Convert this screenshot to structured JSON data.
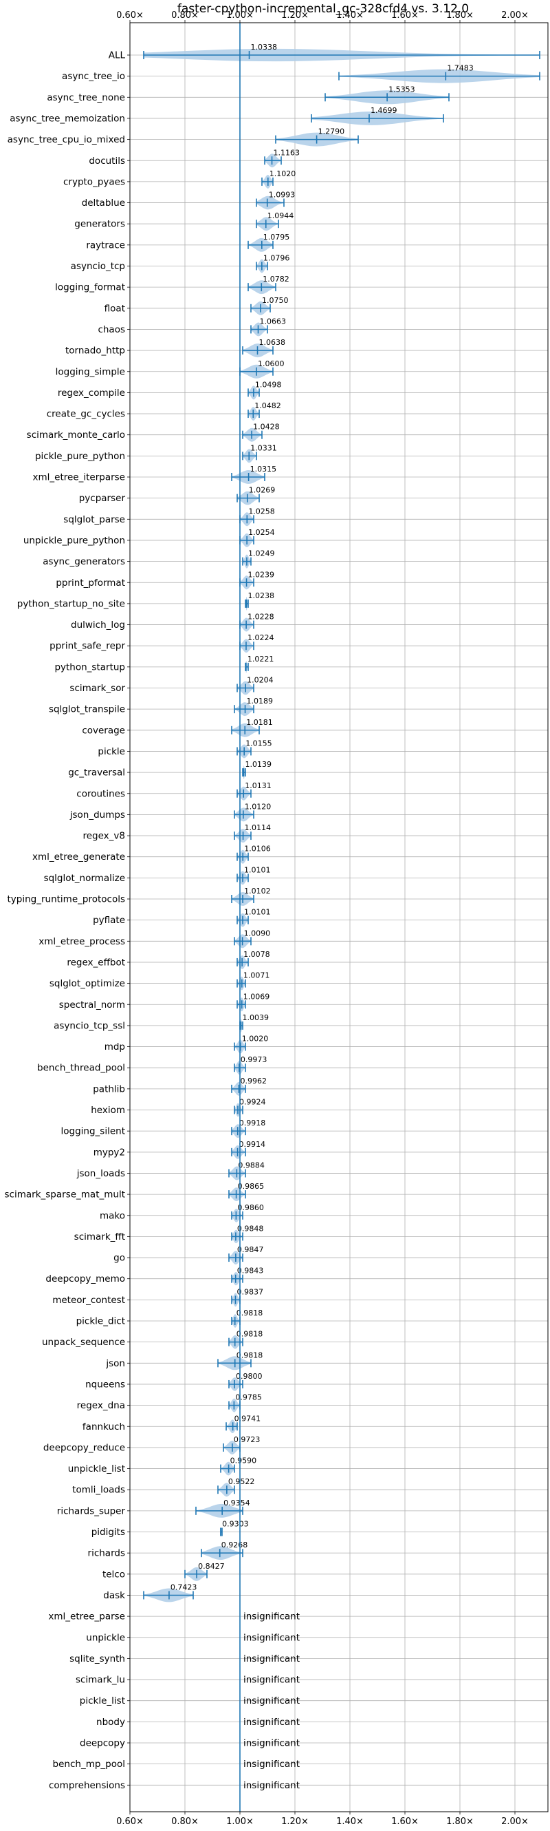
{
  "chart_data": {
    "type": "violin",
    "title": "faster-cpython-incremental_gc-328cfd4 vs. 3.12.0",
    "xlabel": "",
    "ylabel": "",
    "xlim": [
      0.6,
      2.12
    ],
    "xticks": [
      0.6,
      0.8,
      1.0,
      1.2,
      1.4,
      1.6,
      1.8,
      2.0
    ],
    "xtick_labels": [
      "0.60×",
      "0.80×",
      "1.00×",
      "1.20×",
      "1.40×",
      "1.60×",
      "1.80×",
      "2.00×"
    ],
    "baseline": 1.0,
    "grid": true,
    "accent_color": "#1f77b4",
    "violin_color": "#aecde8",
    "insignificant_label": "insignificant",
    "benchmarks": [
      {
        "name": "ALL",
        "value": 1.0338,
        "label": "1.0338",
        "min": 0.65,
        "max": 2.09
      },
      {
        "name": "async_tree_io",
        "value": 1.7483,
        "label": "1.7483",
        "min": 1.36,
        "max": 2.09
      },
      {
        "name": "async_tree_none",
        "value": 1.5353,
        "label": "1.5353",
        "min": 1.31,
        "max": 1.76
      },
      {
        "name": "async_tree_memoization",
        "value": 1.4699,
        "label": "1.4699",
        "min": 1.26,
        "max": 1.74
      },
      {
        "name": "async_tree_cpu_io_mixed",
        "value": 1.279,
        "label": "1.2790",
        "min": 1.13,
        "max": 1.43
      },
      {
        "name": "docutils",
        "value": 1.1163,
        "label": "1.1163",
        "min": 1.09,
        "max": 1.15
      },
      {
        "name": "crypto_pyaes",
        "value": 1.102,
        "label": "1.1020",
        "min": 1.08,
        "max": 1.12
      },
      {
        "name": "deltablue",
        "value": 1.0993,
        "label": "1.0993",
        "min": 1.06,
        "max": 1.16
      },
      {
        "name": "generators",
        "value": 1.0944,
        "label": "1.0944",
        "min": 1.06,
        "max": 1.14
      },
      {
        "name": "raytrace",
        "value": 1.0795,
        "label": "1.0795",
        "min": 1.03,
        "max": 1.12
      },
      {
        "name": "asyncio_tcp",
        "value": 1.0796,
        "label": "1.0796",
        "min": 1.06,
        "max": 1.1
      },
      {
        "name": "logging_format",
        "value": 1.0782,
        "label": "1.0782",
        "min": 1.03,
        "max": 1.13
      },
      {
        "name": "float",
        "value": 1.075,
        "label": "1.0750",
        "min": 1.04,
        "max": 1.11
      },
      {
        "name": "chaos",
        "value": 1.0663,
        "label": "1.0663",
        "min": 1.04,
        "max": 1.1
      },
      {
        "name": "tornado_http",
        "value": 1.0638,
        "label": "1.0638",
        "min": 1.01,
        "max": 1.12
      },
      {
        "name": "logging_simple",
        "value": 1.06,
        "label": "1.0600",
        "min": 1.0,
        "max": 1.12
      },
      {
        "name": "regex_compile",
        "value": 1.0498,
        "label": "1.0498",
        "min": 1.03,
        "max": 1.07
      },
      {
        "name": "create_gc_cycles",
        "value": 1.0482,
        "label": "1.0482",
        "min": 1.03,
        "max": 1.07
      },
      {
        "name": "scimark_monte_carlo",
        "value": 1.0428,
        "label": "1.0428",
        "min": 1.01,
        "max": 1.08
      },
      {
        "name": "pickle_pure_python",
        "value": 1.0331,
        "label": "1.0331",
        "min": 1.01,
        "max": 1.06
      },
      {
        "name": "xml_etree_iterparse",
        "value": 1.0315,
        "label": "1.0315",
        "min": 0.97,
        "max": 1.09
      },
      {
        "name": "pycparser",
        "value": 1.0269,
        "label": "1.0269",
        "min": 0.99,
        "max": 1.07
      },
      {
        "name": "sqlglot_parse",
        "value": 1.0258,
        "label": "1.0258",
        "min": 1.0,
        "max": 1.05
      },
      {
        "name": "unpickle_pure_python",
        "value": 1.0254,
        "label": "1.0254",
        "min": 1.0,
        "max": 1.05
      },
      {
        "name": "async_generators",
        "value": 1.0249,
        "label": "1.0249",
        "min": 1.01,
        "max": 1.04
      },
      {
        "name": "pprint_pformat",
        "value": 1.0239,
        "label": "1.0239",
        "min": 1.0,
        "max": 1.05
      },
      {
        "name": "python_startup_no_site",
        "value": 1.0238,
        "label": "1.0238",
        "min": 1.02,
        "max": 1.03
      },
      {
        "name": "dulwich_log",
        "value": 1.0228,
        "label": "1.0228",
        "min": 1.0,
        "max": 1.05
      },
      {
        "name": "pprint_safe_repr",
        "value": 1.0224,
        "label": "1.0224",
        "min": 1.0,
        "max": 1.05
      },
      {
        "name": "python_startup",
        "value": 1.0221,
        "label": "1.0221",
        "min": 1.02,
        "max": 1.03
      },
      {
        "name": "scimark_sor",
        "value": 1.0204,
        "label": "1.0204",
        "min": 0.99,
        "max": 1.05
      },
      {
        "name": "sqlglot_transpile",
        "value": 1.0189,
        "label": "1.0189",
        "min": 0.98,
        "max": 1.05
      },
      {
        "name": "coverage",
        "value": 1.0181,
        "label": "1.0181",
        "min": 0.97,
        "max": 1.07
      },
      {
        "name": "pickle",
        "value": 1.0155,
        "label": "1.0155",
        "min": 0.99,
        "max": 1.04
      },
      {
        "name": "gc_traversal",
        "value": 1.0139,
        "label": "1.0139",
        "min": 1.01,
        "max": 1.02
      },
      {
        "name": "coroutines",
        "value": 1.0131,
        "label": "1.0131",
        "min": 0.99,
        "max": 1.04
      },
      {
        "name": "json_dumps",
        "value": 1.012,
        "label": "1.0120",
        "min": 0.98,
        "max": 1.05
      },
      {
        "name": "regex_v8",
        "value": 1.0114,
        "label": "1.0114",
        "min": 0.98,
        "max": 1.04
      },
      {
        "name": "xml_etree_generate",
        "value": 1.0106,
        "label": "1.0106",
        "min": 0.99,
        "max": 1.03
      },
      {
        "name": "sqlglot_normalize",
        "value": 1.0101,
        "label": "1.0101",
        "min": 0.99,
        "max": 1.03
      },
      {
        "name": "typing_runtime_protocols",
        "value": 1.0102,
        "label": "1.0102",
        "min": 0.97,
        "max": 1.05
      },
      {
        "name": "pyflate",
        "value": 1.0101,
        "label": "1.0101",
        "min": 0.99,
        "max": 1.03
      },
      {
        "name": "xml_etree_process",
        "value": 1.009,
        "label": "1.0090",
        "min": 0.98,
        "max": 1.04
      },
      {
        "name": "regex_effbot",
        "value": 1.0078,
        "label": "1.0078",
        "min": 0.99,
        "max": 1.03
      },
      {
        "name": "sqlglot_optimize",
        "value": 1.0071,
        "label": "1.0071",
        "min": 0.99,
        "max": 1.02
      },
      {
        "name": "spectral_norm",
        "value": 1.0069,
        "label": "1.0069",
        "min": 0.99,
        "max": 1.02
      },
      {
        "name": "asyncio_tcp_ssl",
        "value": 1.0039,
        "label": "1.0039",
        "min": 1.0,
        "max": 1.01
      },
      {
        "name": "mdp",
        "value": 1.002,
        "label": "1.0020",
        "min": 0.98,
        "max": 1.02
      },
      {
        "name": "bench_thread_pool",
        "value": 0.9973,
        "label": "0.9973",
        "min": 0.98,
        "max": 1.02
      },
      {
        "name": "pathlib",
        "value": 0.9962,
        "label": "0.9962",
        "min": 0.97,
        "max": 1.02
      },
      {
        "name": "hexiom",
        "value": 0.9924,
        "label": "0.9924",
        "min": 0.98,
        "max": 1.01
      },
      {
        "name": "logging_silent",
        "value": 0.9918,
        "label": "0.9918",
        "min": 0.97,
        "max": 1.02
      },
      {
        "name": "mypy2",
        "value": 0.9914,
        "label": "0.9914",
        "min": 0.97,
        "max": 1.02
      },
      {
        "name": "json_loads",
        "value": 0.9884,
        "label": "0.9884",
        "min": 0.96,
        "max": 1.02
      },
      {
        "name": "scimark_sparse_mat_mult",
        "value": 0.9865,
        "label": "0.9865",
        "min": 0.96,
        "max": 1.02
      },
      {
        "name": "mako",
        "value": 0.986,
        "label": "0.9860",
        "min": 0.97,
        "max": 1.01
      },
      {
        "name": "scimark_fft",
        "value": 0.9848,
        "label": "0.9848",
        "min": 0.97,
        "max": 1.01
      },
      {
        "name": "go",
        "value": 0.9847,
        "label": "0.9847",
        "min": 0.96,
        "max": 1.01
      },
      {
        "name": "deepcopy_memo",
        "value": 0.9843,
        "label": "0.9843",
        "min": 0.97,
        "max": 1.01
      },
      {
        "name": "meteor_contest",
        "value": 0.9837,
        "label": "0.9837",
        "min": 0.97,
        "max": 1.0
      },
      {
        "name": "pickle_dict",
        "value": 0.9818,
        "label": "0.9818",
        "min": 0.97,
        "max": 1.0
      },
      {
        "name": "unpack_sequence",
        "value": 0.9818,
        "label": "0.9818",
        "min": 0.96,
        "max": 1.01
      },
      {
        "name": "json",
        "value": 0.9818,
        "label": "0.9818",
        "min": 0.92,
        "max": 1.04
      },
      {
        "name": "nqueens",
        "value": 0.98,
        "label": "0.9800",
        "min": 0.96,
        "max": 1.01
      },
      {
        "name": "regex_dna",
        "value": 0.9785,
        "label": "0.9785",
        "min": 0.96,
        "max": 1.0
      },
      {
        "name": "fannkuch",
        "value": 0.9741,
        "label": "0.9741",
        "min": 0.95,
        "max": 0.99
      },
      {
        "name": "deepcopy_reduce",
        "value": 0.9723,
        "label": "0.9723",
        "min": 0.94,
        "max": 1.0
      },
      {
        "name": "unpickle_list",
        "value": 0.959,
        "label": "0.9590",
        "min": 0.93,
        "max": 0.98
      },
      {
        "name": "tomli_loads",
        "value": 0.9522,
        "label": "0.9522",
        "min": 0.92,
        "max": 0.98
      },
      {
        "name": "richards_super",
        "value": 0.9354,
        "label": "0.9354",
        "min": 0.84,
        "max": 1.01
      },
      {
        "name": "pidigits",
        "value": 0.9303,
        "label": "0.9303",
        "min": 0.93,
        "max": 0.935
      },
      {
        "name": "richards",
        "value": 0.9268,
        "label": "0.9268",
        "min": 0.86,
        "max": 1.01
      },
      {
        "name": "telco",
        "value": 0.8427,
        "label": "0.8427",
        "min": 0.8,
        "max": 0.88
      },
      {
        "name": "dask",
        "value": 0.7423,
        "label": "0.7423",
        "min": 0.65,
        "max": 0.83
      },
      {
        "name": "xml_etree_parse",
        "value": null,
        "label": "insignificant"
      },
      {
        "name": "unpickle",
        "value": null,
        "label": "insignificant"
      },
      {
        "name": "sqlite_synth",
        "value": null,
        "label": "insignificant"
      },
      {
        "name": "scimark_lu",
        "value": null,
        "label": "insignificant"
      },
      {
        "name": "pickle_list",
        "value": null,
        "label": "insignificant"
      },
      {
        "name": "nbody",
        "value": null,
        "label": "insignificant"
      },
      {
        "name": "deepcopy",
        "value": null,
        "label": "insignificant"
      },
      {
        "name": "bench_mp_pool",
        "value": null,
        "label": "insignificant"
      },
      {
        "name": "comprehensions",
        "value": null,
        "label": "insignificant"
      }
    ]
  }
}
